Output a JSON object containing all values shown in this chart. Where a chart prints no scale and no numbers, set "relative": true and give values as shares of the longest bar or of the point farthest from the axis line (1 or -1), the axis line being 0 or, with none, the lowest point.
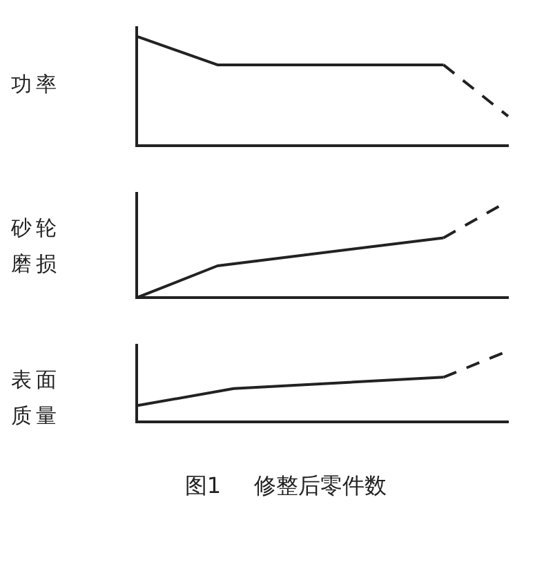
{
  "chart_data": [
    {
      "type": "line",
      "relative": true,
      "ylabel": "功率",
      "categories": [
        null,
        null,
        null,
        null,
        null,
        null,
        null,
        null,
        null,
        null,
        null,
        null,
        null,
        null,
        null,
        null,
        null,
        null,
        null,
        null,
        null,
        null,
        null,
        null
      ],
      "marker": "none",
      "grid": false,
      "legend": false,
      "series": [
        {
          "color": "#222222",
          "line_style": "solid",
          "values": [
            1.0,
            null,
            null,
            null,
            null,
            0.74,
            null,
            null,
            null,
            null,
            null,
            null,
            null,
            null,
            null,
            null,
            null,
            null,
            null,
            0.74,
            null,
            null,
            null,
            null
          ]
        },
        {
          "color": "#222222",
          "line_style": "dashed",
          "values": [
            null,
            null,
            null,
            null,
            null,
            null,
            null,
            null,
            null,
            null,
            null,
            null,
            null,
            null,
            null,
            null,
            null,
            null,
            null,
            0.74,
            null,
            null,
            null,
            0.27
          ]
        }
      ]
    },
    {
      "type": "line",
      "relative": true,
      "ylabel": "砂轮磨损",
      "categories": [
        null,
        null,
        null,
        null,
        null,
        null,
        null,
        null,
        null,
        null,
        null,
        null,
        null,
        null,
        null,
        null,
        null,
        null,
        null,
        null,
        null,
        null,
        null,
        null
      ],
      "marker": "none",
      "grid": false,
      "legend": false,
      "series": [
        {
          "color": "#222222",
          "line_style": "solid",
          "values": [
            0,
            null,
            null,
            null,
            null,
            0.33,
            null,
            null,
            null,
            null,
            null,
            null,
            null,
            null,
            null,
            null,
            null,
            null,
            null,
            0.62,
            null,
            null,
            null,
            null
          ]
        },
        {
          "color": "#222222",
          "line_style": "dashed",
          "values": [
            null,
            null,
            null,
            null,
            null,
            null,
            null,
            null,
            null,
            null,
            null,
            null,
            null,
            null,
            null,
            null,
            null,
            null,
            null,
            0.62,
            null,
            null,
            null,
            1.0
          ]
        }
      ]
    },
    {
      "type": "line",
      "relative": true,
      "ylabel": "表面质量",
      "xlabel": "修整后零件数",
      "annotations": [
        "图1"
      ],
      "categories": [
        null,
        null,
        null,
        null,
        null,
        null,
        null,
        null,
        null,
        null,
        null,
        null,
        null,
        null,
        null,
        null,
        null,
        null,
        null,
        null,
        null,
        null,
        null,
        null
      ],
      "marker": "none",
      "grid": false,
      "legend": false,
      "series": [
        {
          "color": "#222222",
          "line_style": "solid",
          "values": [
            0.23,
            null,
            null,
            null,
            null,
            null,
            0.47,
            null,
            null,
            null,
            null,
            null,
            null,
            null,
            null,
            null,
            null,
            null,
            null,
            0.63,
            null,
            null,
            null,
            null
          ]
        },
        {
          "color": "#222222",
          "line_style": "dashed",
          "values": [
            null,
            null,
            null,
            null,
            null,
            null,
            null,
            null,
            null,
            null,
            null,
            null,
            null,
            null,
            null,
            null,
            null,
            null,
            null,
            0.63,
            null,
            null,
            null,
            1.0
          ]
        }
      ]
    }
  ]
}
